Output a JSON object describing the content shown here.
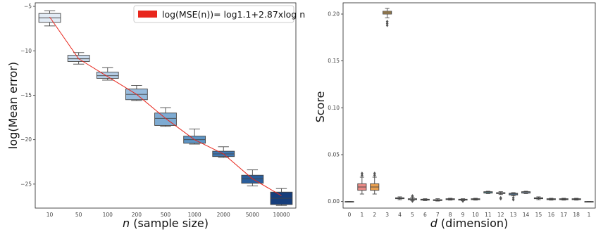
{
  "chart_data": [
    {
      "type": "box",
      "xlabel_italic": "n",
      "xlabel_rest": " (sample size)",
      "ylabel": "log(Mean error)",
      "ylim": [
        -27.7,
        -4.6
      ],
      "yticks": [
        -5,
        -10,
        -15,
        -20,
        -25
      ],
      "ytick_labels": [
        "−5",
        "−10",
        "−15",
        "−20",
        "−25"
      ],
      "categories": [
        "10",
        "50",
        "100",
        "200",
        "500",
        "1000",
        "2000",
        "5000",
        "10000"
      ],
      "boxes": [
        {
          "whislo": -7.2,
          "q1": -6.8,
          "med": -6.3,
          "q3": -5.8,
          "whishi": -5.5
        },
        {
          "whislo": -11.5,
          "q1": -11.2,
          "med": -10.9,
          "q3": -10.5,
          "whishi": -10.2
        },
        {
          "whislo": -13.3,
          "q1": -13.1,
          "med": -12.8,
          "q3": -12.4,
          "whishi": -11.9
        },
        {
          "whislo": -15.6,
          "q1": -15.5,
          "med": -14.9,
          "q3": -14.3,
          "whishi": -13.9
        },
        {
          "whislo": -18.5,
          "q1": -18.4,
          "med": -17.6,
          "q3": -17.0,
          "whishi": -16.4
        },
        {
          "whislo": -20.5,
          "q1": -20.4,
          "med": -20.0,
          "q3": -19.6,
          "whishi": -18.8
        },
        {
          "whislo": -22.0,
          "q1": -21.9,
          "med": -21.6,
          "q3": -21.3,
          "whishi": -20.8
        },
        {
          "whislo": -25.2,
          "q1": -24.9,
          "med": -24.4,
          "q3": -24.0,
          "whishi": -23.4
        },
        {
          "whislo": -27.4,
          "q1": -27.3,
          "med": -26.6,
          "q3": -25.9,
          "whishi": -25.5
        }
      ],
      "box_colors": [
        "#e2ebf5",
        "#c9daec",
        "#b4cce4",
        "#97bbdc",
        "#7eabd2",
        "#5e95c5",
        "#3f78b3",
        "#2a5e9c",
        "#163e7c"
      ],
      "fit_line": {
        "label": "log(MSE(n))= log1.1+2.87xlog n",
        "color": "#e8261c",
        "y": [
          -6.2,
          -10.9,
          -12.9,
          -14.9,
          -17.6,
          -20.0,
          -21.6,
          -24.4,
          -26.3
        ]
      }
    },
    {
      "type": "box",
      "xlabel_italic": "d",
      "xlabel_rest": " (dimension)",
      "ylabel": "Score",
      "ylim": [
        -0.007,
        0.212
      ],
      "yticks": [
        0.0,
        0.05,
        0.1,
        0.15,
        0.2
      ],
      "ytick_labels": [
        "0.00",
        "0.05",
        "0.10",
        "0.15",
        "0.20"
      ],
      "categories": [
        "0",
        "1",
        "2",
        "3",
        "4",
        "5",
        "6",
        "7",
        "8",
        "9",
        "10",
        "11",
        "12",
        "13",
        "14",
        "15",
        "16",
        "17",
        "18",
        "1"
      ],
      "boxes": [
        {
          "whislo": 0.0,
          "q1": 0.0,
          "med": 0.0,
          "q3": 0.0,
          "whishi": 0.0,
          "fliers": []
        },
        {
          "whislo": 0.008,
          "q1": 0.012,
          "med": 0.0155,
          "q3": 0.019,
          "whishi": 0.026,
          "fliers": [
            0.028,
            0.03
          ]
        },
        {
          "whislo": 0.008,
          "q1": 0.012,
          "med": 0.0155,
          "q3": 0.019,
          "whishi": 0.026,
          "fliers": [
            0.028,
            0.03
          ]
        },
        {
          "whislo": 0.196,
          "q1": 0.2,
          "med": 0.2015,
          "q3": 0.203,
          "whishi": 0.206,
          "fliers": [
            0.192,
            0.19,
            0.188
          ]
        },
        {
          "whislo": 0.002,
          "q1": 0.003,
          "med": 0.0035,
          "q3": 0.004,
          "whishi": 0.005,
          "fliers": []
        },
        {
          "whislo": 0.001,
          "q1": 0.002,
          "med": 0.0025,
          "q3": 0.003,
          "whishi": 0.0045,
          "fliers": [
            0.005,
            0.006,
            0.0005
          ]
        },
        {
          "whislo": 0.001,
          "q1": 0.0015,
          "med": 0.002,
          "q3": 0.0025,
          "whishi": 0.003,
          "fliers": []
        },
        {
          "whislo": 0.0005,
          "q1": 0.001,
          "med": 0.0015,
          "q3": 0.002,
          "whishi": 0.003,
          "fliers": []
        },
        {
          "whislo": 0.0015,
          "q1": 0.002,
          "med": 0.0025,
          "q3": 0.003,
          "whishi": 0.0035,
          "fliers": []
        },
        {
          "whislo": 0.001,
          "q1": 0.0015,
          "med": 0.002,
          "q3": 0.0025,
          "whishi": 0.003,
          "fliers": [
            0.0005
          ]
        },
        {
          "whislo": 0.0015,
          "q1": 0.002,
          "med": 0.0025,
          "q3": 0.003,
          "whishi": 0.0035,
          "fliers": []
        },
        {
          "whislo": 0.0085,
          "q1": 0.009,
          "med": 0.0095,
          "q3": 0.0105,
          "whishi": 0.011,
          "fliers": []
        },
        {
          "whislo": 0.0075,
          "q1": 0.0085,
          "med": 0.009,
          "q3": 0.0095,
          "whishi": 0.0105,
          "fliers": [
            0.004,
            0.003
          ]
        },
        {
          "whislo": 0.006,
          "q1": 0.007,
          "med": 0.008,
          "q3": 0.0088,
          "whishi": 0.0095,
          "fliers": [
            0.004,
            0.002
          ]
        },
        {
          "whislo": 0.0085,
          "q1": 0.009,
          "med": 0.0095,
          "q3": 0.0105,
          "whishi": 0.011,
          "fliers": []
        },
        {
          "whislo": 0.002,
          "q1": 0.003,
          "med": 0.0035,
          "q3": 0.004,
          "whishi": 0.005,
          "fliers": []
        },
        {
          "whislo": 0.0015,
          "q1": 0.002,
          "med": 0.0025,
          "q3": 0.003,
          "whishi": 0.0035,
          "fliers": []
        },
        {
          "whislo": 0.0015,
          "q1": 0.002,
          "med": 0.0025,
          "q3": 0.003,
          "whishi": 0.0035,
          "fliers": []
        },
        {
          "whislo": 0.0015,
          "q1": 0.002,
          "med": 0.0025,
          "q3": 0.003,
          "whishi": 0.0035,
          "fliers": []
        },
        {
          "whislo": 0.0,
          "q1": 0.0,
          "med": 0.0,
          "q3": 0.0,
          "whishi": 0.0,
          "fliers": []
        }
      ],
      "box_colors": [
        "#3b6fb0",
        "#e98a85",
        "#e9a050",
        "#c49a55",
        "#7aa6c9",
        "#6d9ec9",
        "#a58bc3",
        "#8c6a54",
        "#c57cb0",
        "#8a8a8a",
        "#b0b556",
        "#5fb3bf",
        "#4f7cb5",
        "#5a93c7",
        "#a7bfdc",
        "#4f8b6f",
        "#8fbf7a",
        "#c98a8a",
        "#b09ad0",
        "#9b7b6b"
      ]
    }
  ]
}
